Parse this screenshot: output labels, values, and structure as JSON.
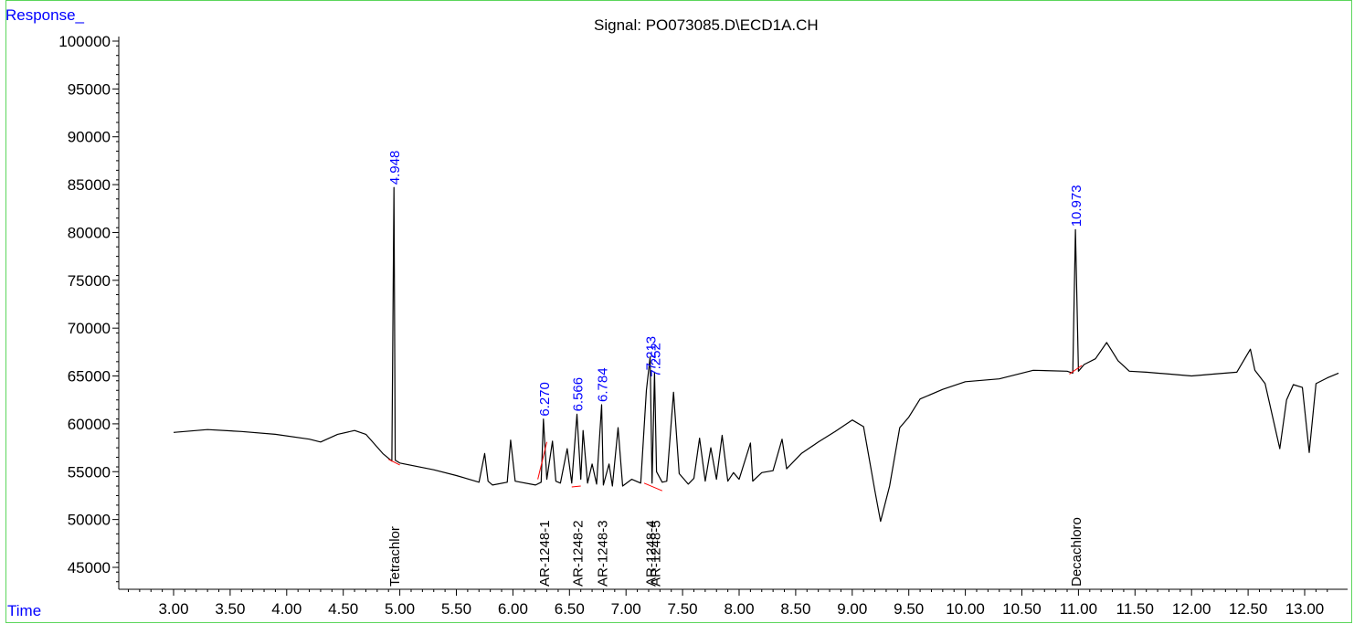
{
  "chart_data": {
    "type": "line",
    "title": "Signal: PO073085.D\\ECD1A.CH",
    "ylabel": "Response_",
    "xlabel": "Time",
    "xlim": [
      2.5,
      13.3
    ],
    "ylim": [
      41000,
      102000
    ],
    "x_ticks": [
      "3.00",
      "3.50",
      "4.00",
      "4.50",
      "5.00",
      "5.50",
      "6.00",
      "6.50",
      "7.00",
      "7.50",
      "8.00",
      "8.50",
      "9.00",
      "9.50",
      "10.00",
      "10.50",
      "11.00",
      "11.50",
      "12.00",
      "12.50",
      "13.00"
    ],
    "y_ticks": [
      "45000",
      "50000",
      "55000",
      "60000",
      "65000",
      "70000",
      "75000",
      "80000",
      "85000",
      "90000",
      "95000",
      "100000"
    ],
    "colors": {
      "trace": "#000000",
      "peak_label": "#0000ff",
      "baseline": "#ff0000",
      "frame": "#5cd65c"
    },
    "series": [
      {
        "x": [
          3.0,
          3.3,
          3.6,
          3.9,
          4.2,
          4.3,
          4.45,
          4.6,
          4.7,
          4.85,
          4.93,
          4.948,
          4.96,
          5.0,
          5.3,
          5.5,
          5.7,
          5.75,
          5.78,
          5.82,
          5.95,
          5.98,
          6.02,
          6.2,
          6.25,
          6.27,
          6.3,
          6.35,
          6.38,
          6.42,
          6.48,
          6.52,
          6.566,
          6.6,
          6.62,
          6.66,
          6.7,
          6.74,
          6.784,
          6.8,
          6.85,
          6.88,
          6.93,
          6.97,
          7.05,
          7.13,
          7.18,
          7.213,
          7.23,
          7.252,
          7.27,
          7.32,
          7.36,
          7.42,
          7.47,
          7.55,
          7.6,
          7.65,
          7.7,
          7.75,
          7.8,
          7.85,
          7.9,
          7.95,
          8.0,
          8.1,
          8.12,
          8.2,
          8.3,
          8.38,
          8.42,
          8.55,
          8.7,
          8.85,
          9.0,
          9.1,
          9.2,
          9.25,
          9.33,
          9.42,
          9.5,
          9.6,
          9.8,
          10.0,
          10.3,
          10.6,
          10.9,
          10.95,
          10.973,
          11.0,
          11.05,
          11.15,
          11.25,
          11.35,
          11.45,
          11.6,
          11.8,
          12.0,
          12.2,
          12.4,
          12.52,
          12.56,
          12.65,
          12.78,
          12.84,
          12.9,
          12.98,
          13.04,
          13.1,
          13.2,
          13.3
        ],
        "y": [
          59100,
          59400,
          59200,
          58900,
          58400,
          58100,
          58900,
          59300,
          58900,
          56900,
          56100,
          84700,
          56200,
          55900,
          55200,
          54600,
          53900,
          56900,
          54000,
          53600,
          53900,
          58300,
          54000,
          53600,
          53900,
          60500,
          54200,
          58200,
          54000,
          53800,
          57400,
          53800,
          61000,
          54200,
          59300,
          53800,
          55800,
          53700,
          62000,
          53600,
          55800,
          53500,
          59600,
          53500,
          54200,
          53800,
          63500,
          67000,
          53800,
          65400,
          55000,
          53900,
          54000,
          63300,
          54800,
          53700,
          54300,
          58500,
          54000,
          57500,
          54200,
          58800,
          54000,
          54900,
          54200,
          58000,
          54000,
          54900,
          55100,
          58400,
          55300,
          56900,
          58100,
          59200,
          60400,
          59700,
          53000,
          49800,
          53500,
          59600,
          60700,
          62600,
          63600,
          64400,
          64700,
          65600,
          65500,
          65300,
          80300,
          65500,
          66200,
          66800,
          68500,
          66600,
          65500,
          65400,
          65200,
          65000,
          65200,
          65400,
          67800,
          65600,
          64200,
          57400,
          62500,
          64100,
          63800,
          57000,
          64200,
          64800,
          65300
        ]
      }
    ],
    "peak_labels": [
      {
        "x": 4.948,
        "y": 84700,
        "text": "4.948"
      },
      {
        "x": 6.27,
        "y": 60500,
        "text": "6.270"
      },
      {
        "x": 6.566,
        "y": 61000,
        "text": "6.566"
      },
      {
        "x": 6.784,
        "y": 62000,
        "text": "6.784"
      },
      {
        "x": 7.213,
        "y": 65300,
        "text": "7.213"
      },
      {
        "x": 7.252,
        "y": 64600,
        "text": "7.252"
      },
      {
        "x": 10.973,
        "y": 80300,
        "text": "10.973"
      }
    ],
    "compound_labels": [
      {
        "x": 4.948,
        "text": "Tetrachlor"
      },
      {
        "x": 6.27,
        "text": "AR-1248-1"
      },
      {
        "x": 6.566,
        "text": "AR-1248-2"
      },
      {
        "x": 6.784,
        "text": "AR-1248-3"
      },
      {
        "x": 7.213,
        "text": "AR-1248-4"
      },
      {
        "x": 7.252,
        "text": "AR-1248-5"
      },
      {
        "x": 10.973,
        "text": "Decachloro"
      }
    ],
    "baselines": [
      {
        "x": [
          4.9,
          5.0
        ],
        "y": [
          56300,
          55700
        ]
      },
      {
        "x": [
          6.22,
          6.3
        ],
        "y": [
          54200,
          58100
        ]
      },
      {
        "x": [
          6.52,
          6.6
        ],
        "y": [
          53400,
          53500
        ]
      },
      {
        "x": [
          7.16,
          7.32
        ],
        "y": [
          53800,
          53000
        ]
      },
      {
        "x": [
          10.92,
          11.03
        ],
        "y": [
          65200,
          66100
        ]
      }
    ]
  }
}
